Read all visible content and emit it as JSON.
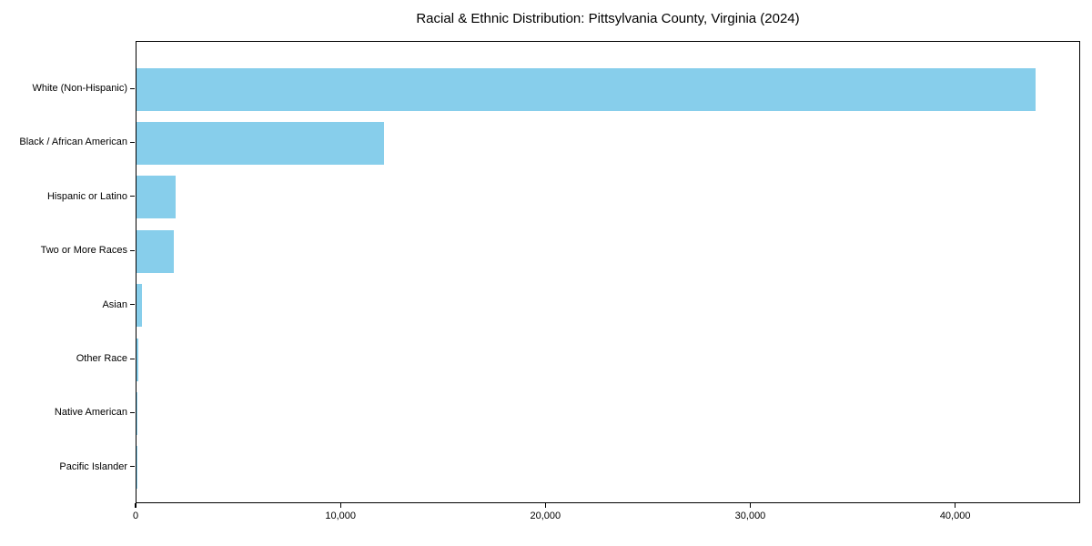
{
  "chart_data": {
    "type": "bar",
    "orientation": "horizontal",
    "title": "Racial & Ethnic Distribution: Pittsylvania County, Virginia (2024)",
    "xlabel": "",
    "ylabel": "",
    "categories": [
      "White (Non-Hispanic)",
      "Black / African American",
      "Hispanic or Latino",
      "Two or More Races",
      "Asian",
      "Other Race",
      "Native American",
      "Pacific Islander"
    ],
    "values": [
      43900,
      12100,
      1900,
      1800,
      250,
      80,
      30,
      10
    ],
    "xlim": [
      0,
      46100
    ],
    "xticks": [
      0,
      10000,
      20000,
      30000,
      40000
    ],
    "xtick_labels": [
      "0",
      "10,000",
      "20,000",
      "30,000",
      "40,000"
    ],
    "bar_color": "#87CEEB",
    "grid": false,
    "legend_position": "none",
    "plot_border_color": "#000000",
    "background_color": "#ffffff"
  }
}
